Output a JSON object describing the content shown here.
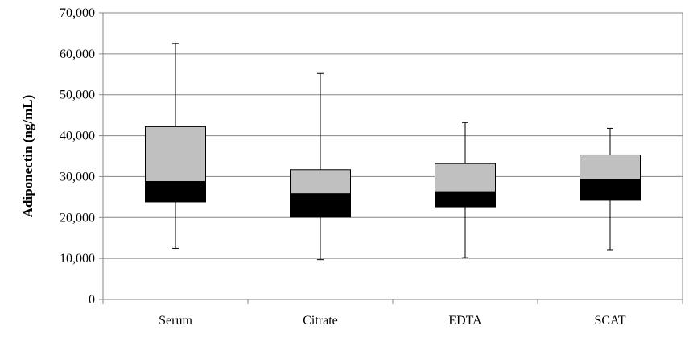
{
  "chart_data": {
    "type": "box",
    "title": "",
    "xlabel": "",
    "ylabel": "Adiponectin (ng/mL)",
    "ylim": [
      0,
      70000
    ],
    "yticks": [
      0,
      10000,
      20000,
      30000,
      40000,
      50000,
      60000,
      70000
    ],
    "ytick_labels": [
      "0",
      "10,000",
      "20,000",
      "30,000",
      "40,000",
      "50,000",
      "60,000",
      "70,000"
    ],
    "grid": true,
    "categories": [
      "Serum",
      "Citrate",
      "EDTA",
      "SCAT"
    ],
    "boxes": [
      {
        "category": "Serum",
        "min": 12500,
        "q1": 23800,
        "median": 28800,
        "q3": 42200,
        "max": 62500
      },
      {
        "category": "Citrate",
        "min": 9700,
        "q1": 20100,
        "median": 25800,
        "q3": 31700,
        "max": 55200
      },
      {
        "category": "EDTA",
        "min": 10200,
        "q1": 22600,
        "median": 26300,
        "q3": 33200,
        "max": 43200
      },
      {
        "category": "SCAT",
        "min": 12000,
        "q1": 24200,
        "median": 29300,
        "q3": 35300,
        "max": 41800
      }
    ],
    "colors": {
      "upper_box": "#c0c0c0",
      "lower_box": "#000000",
      "grid": "#868686",
      "axis": "#868686"
    }
  }
}
